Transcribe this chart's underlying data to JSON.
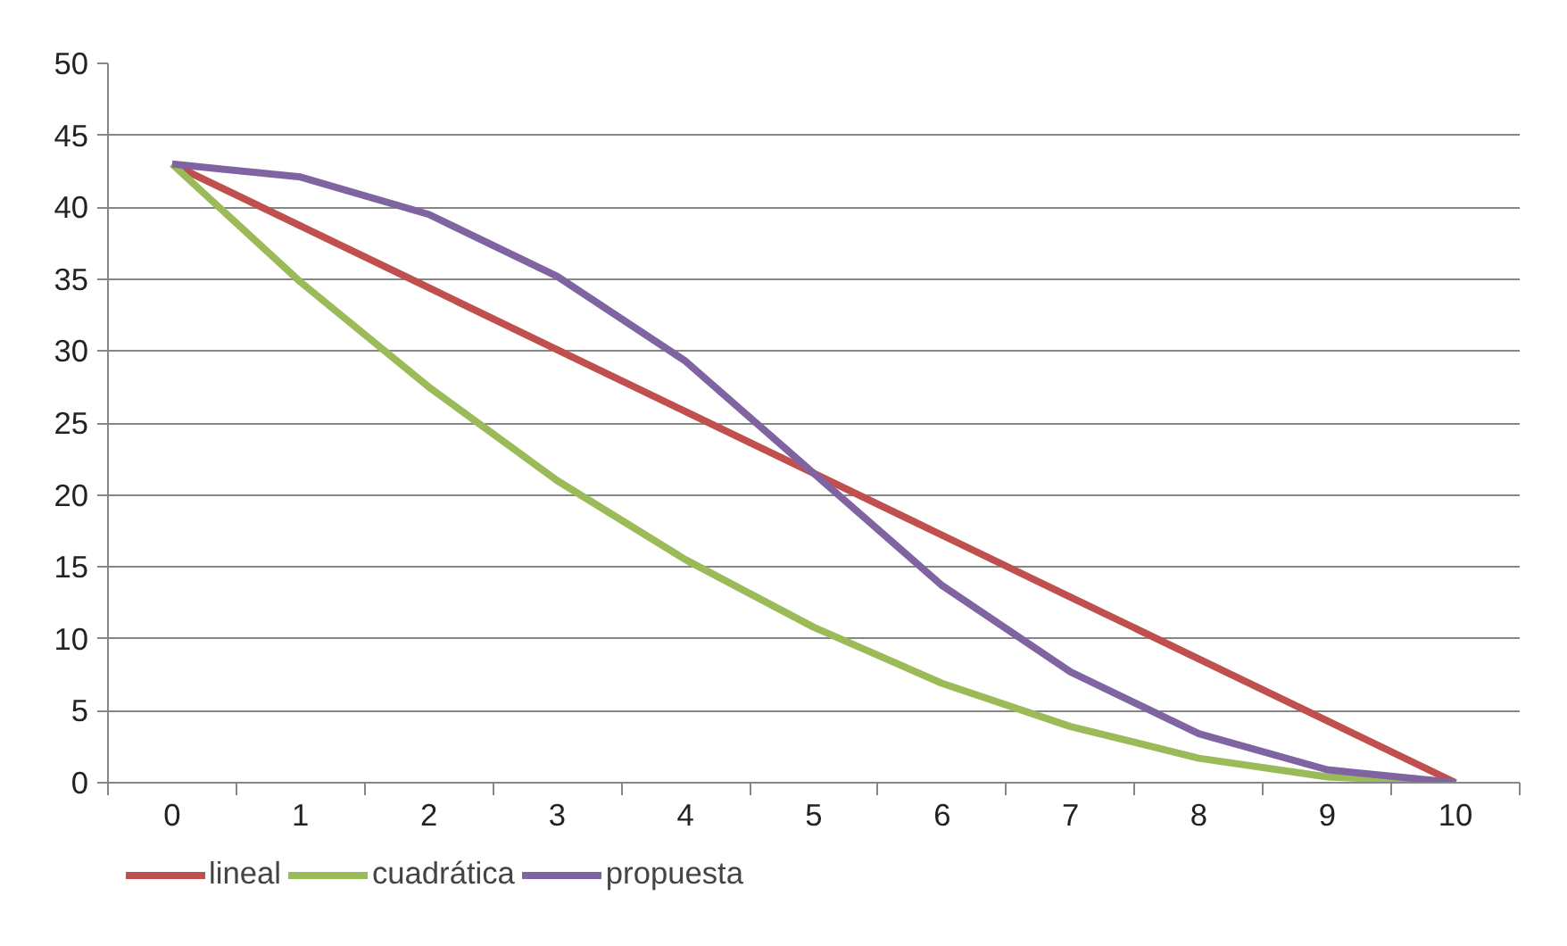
{
  "chart_data": {
    "type": "line",
    "categories": [
      "0",
      "1",
      "2",
      "3",
      "4",
      "5",
      "6",
      "7",
      "8",
      "9",
      "10"
    ],
    "series": [
      {
        "name": "lineal",
        "color": "#c0504d",
        "values": [
          43,
          38.7,
          34.4,
          30.1,
          25.8,
          21.5,
          17.2,
          12.9,
          8.6,
          4.3,
          0
        ]
      },
      {
        "name": "cuadrática",
        "color": "#9bbb59",
        "values": [
          43,
          34.8,
          27.5,
          21,
          15.5,
          10.8,
          6.9,
          3.9,
          1.7,
          0.4,
          0
        ]
      },
      {
        "name": "propuesta",
        "color": "#8064a2",
        "values": [
          43,
          42.1,
          39.5,
          35.2,
          29.3,
          21.5,
          13.7,
          7.7,
          3.4,
          0.9,
          0
        ]
      }
    ],
    "ylim": [
      0,
      50
    ],
    "yticks": [
      0,
      5,
      10,
      15,
      20,
      25,
      30,
      35,
      40,
      45,
      50
    ],
    "grid": "y",
    "legend": "bottom",
    "marker": "none",
    "line_style": "solid"
  }
}
